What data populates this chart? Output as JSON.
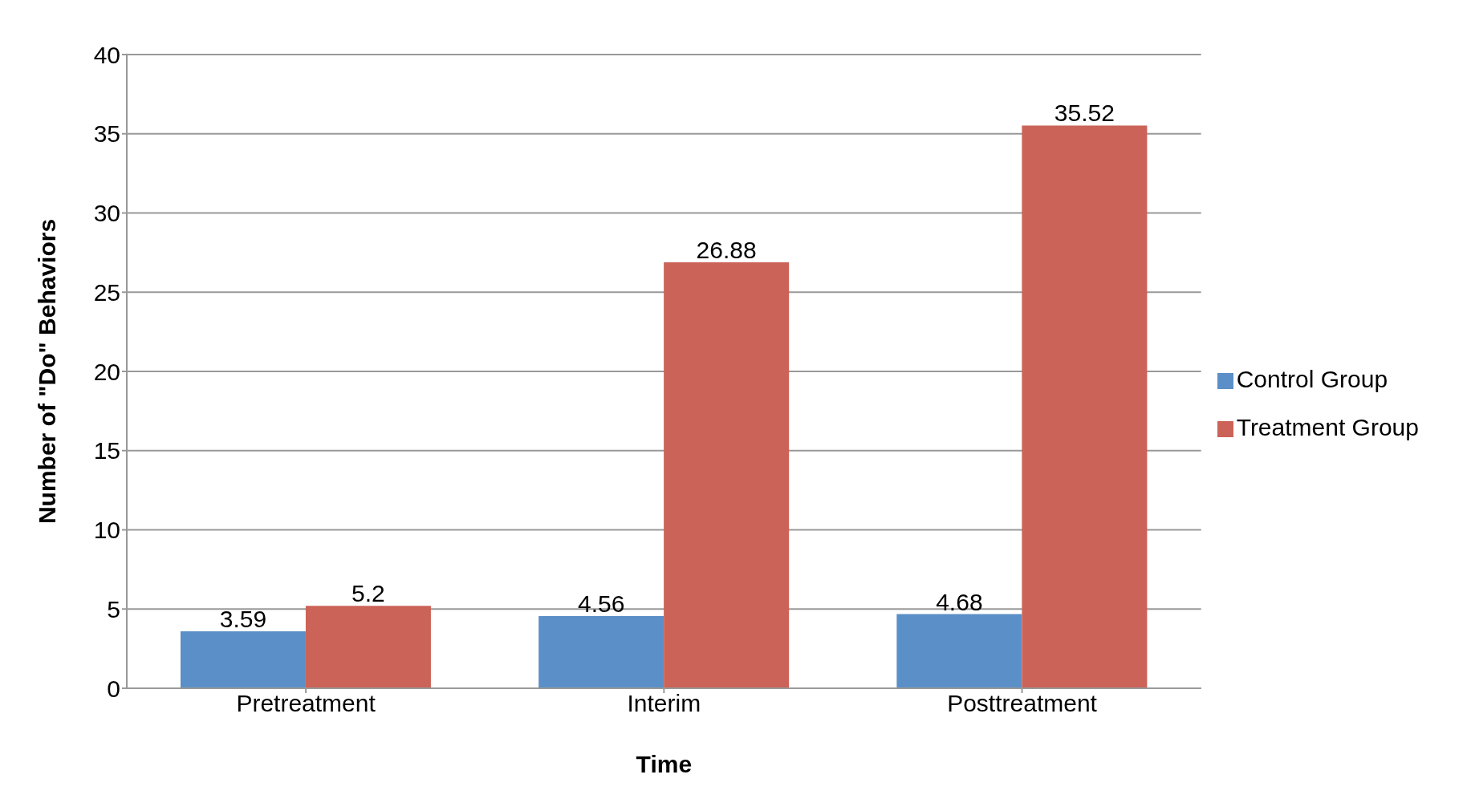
{
  "chart_data": {
    "type": "bar",
    "xlabel": "Time",
    "ylabel": "Number of \"Do\" Behaviors",
    "categories": [
      "Pretreatment",
      "Interim",
      "Posttreatment"
    ],
    "series": [
      {
        "name": "Control Group",
        "color": "#5b8fc7",
        "values": [
          3.59,
          4.56,
          4.68
        ]
      },
      {
        "name": "Treatment Group",
        "color": "#cb6358",
        "values": [
          5.2,
          26.88,
          35.52
        ]
      }
    ],
    "ylim": [
      0,
      40
    ],
    "yticks": [
      0,
      5,
      10,
      15,
      20,
      25,
      30,
      35,
      40
    ],
    "grid": "y",
    "legend": "right",
    "data_labels": true
  }
}
